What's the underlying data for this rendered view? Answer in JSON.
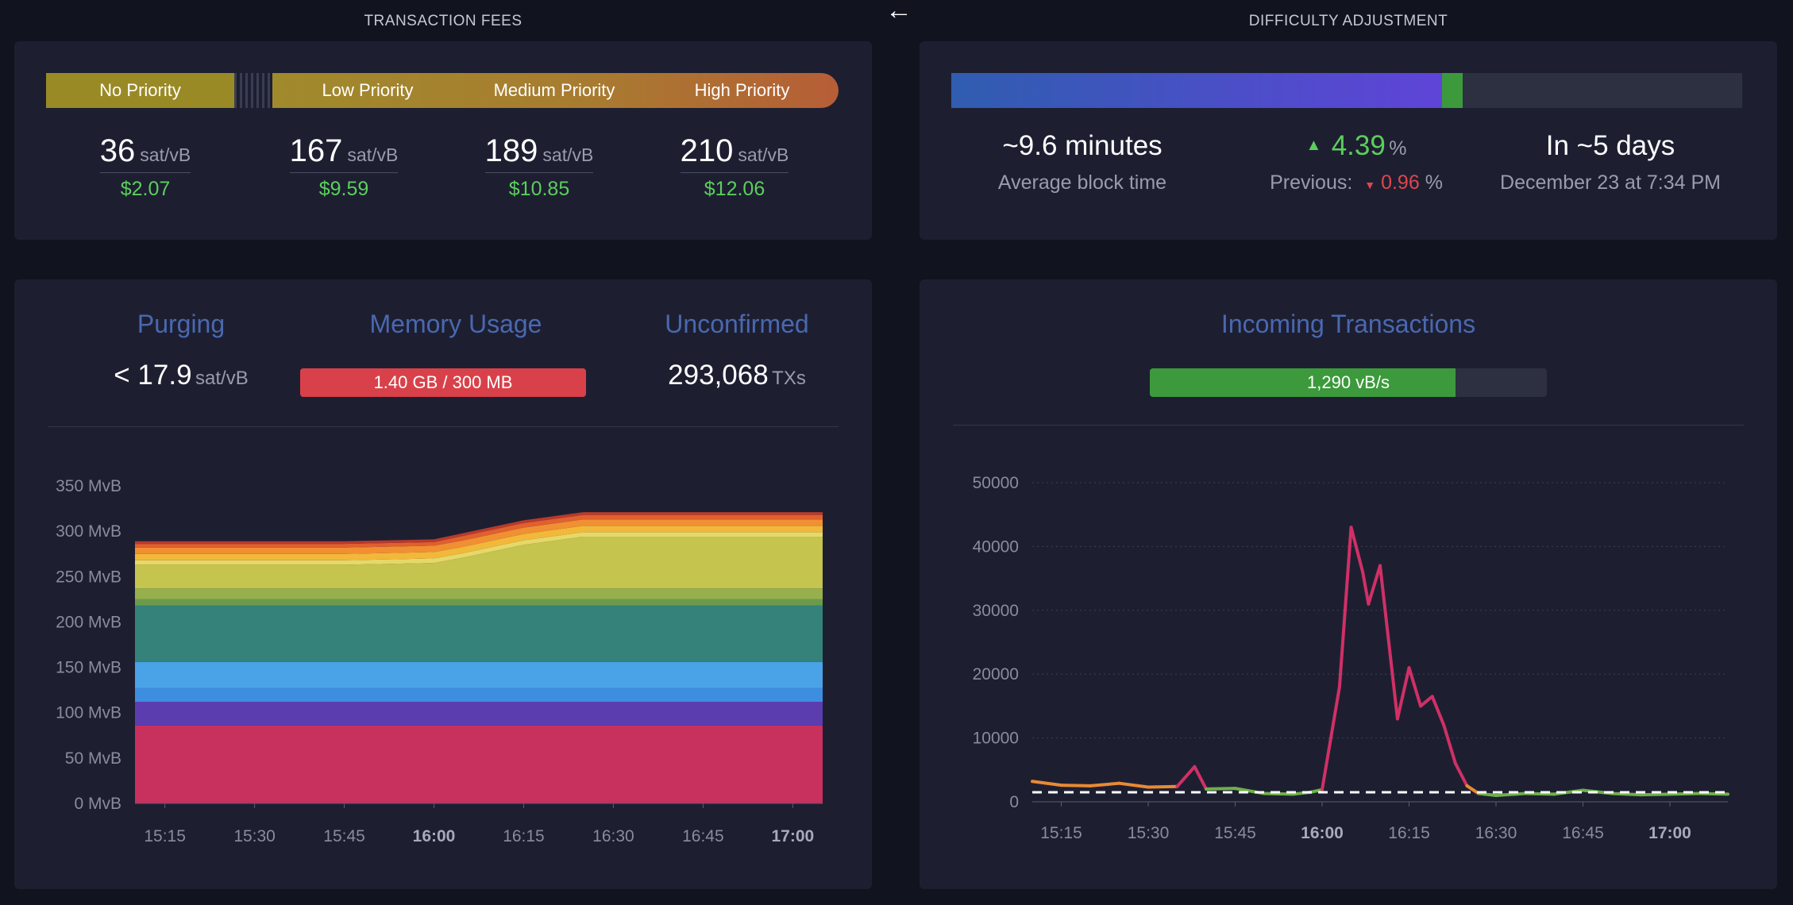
{
  "top_icon": "arrow-left-icon",
  "fees": {
    "title": "TRANSACTION FEES",
    "segments": [
      {
        "label": "No Priority",
        "color": "#9a8a26"
      },
      {
        "label": "Low Priority",
        "color": "#a08a2c"
      },
      {
        "label": "Medium Priority",
        "color": "#a87c30"
      },
      {
        "label": "High Priority",
        "color": "#b65e36"
      }
    ],
    "items": [
      {
        "value": "36",
        "unit": "sat/vB",
        "usd": "$2.07"
      },
      {
        "value": "167",
        "unit": "sat/vB",
        "usd": "$9.59"
      },
      {
        "value": "189",
        "unit": "sat/vB",
        "usd": "$10.85"
      },
      {
        "value": "210",
        "unit": "sat/vB",
        "usd": "$12.06"
      }
    ]
  },
  "difficulty": {
    "title": "DIFFICULTY ADJUSTMENT",
    "progress": 0.62,
    "block_time_value": "~9.6 minutes",
    "block_time_label": "Average block time",
    "change_value": "4.39",
    "change_unit": "%",
    "previous_label": "Previous:",
    "previous_value": "0.96",
    "previous_unit": "%",
    "eta_value": "In ~5 days",
    "eta_date": "December 23 at 7:34 PM",
    "colors": {
      "up": "#5cce5c",
      "down": "#e0454e"
    }
  },
  "mempool": {
    "purging_label": "Purging",
    "purging_value": "< 17.9",
    "purging_unit": "sat/vB",
    "memory_label": "Memory Usage",
    "memory_value": "1.40 GB / 300 MB",
    "unconfirmed_label": "Unconfirmed",
    "unconfirmed_value": "293,068",
    "unconfirmed_unit": "TXs"
  },
  "incoming": {
    "title": "Incoming Transactions",
    "rate": "1,290 vB/s",
    "rate_fraction": 0.77
  },
  "chart_data": [
    {
      "type": "area",
      "title": "",
      "stacked": true,
      "x": [
        "15:10",
        "15:15",
        "15:30",
        "15:45",
        "16:00",
        "16:05",
        "16:15",
        "16:25",
        "16:30",
        "16:45",
        "17:00",
        "17:05"
      ],
      "xticks": [
        "15:15",
        "15:30",
        "15:45",
        "16:00",
        "16:15",
        "16:30",
        "16:45",
        "17:00"
      ],
      "xticks_bold": [
        "16:00",
        "17:00"
      ],
      "ylim": [
        0,
        350
      ],
      "yticks": [
        "0 MvB",
        "50 MvB",
        "100 MvB",
        "150 MvB",
        "200 MvB",
        "250 MvB",
        "300 MvB",
        "350 MvB"
      ],
      "grid": false,
      "series": [
        {
          "color": "#c8305e",
          "values": [
            86,
            86,
            86,
            86,
            86,
            86,
            86,
            86,
            86,
            86,
            86,
            86
          ]
        },
        {
          "color": "#5b3db0",
          "values": [
            26,
            26,
            26,
            26,
            26,
            26,
            26,
            26,
            26,
            26,
            26,
            26
          ]
        },
        {
          "color": "#3d8ee0",
          "values": [
            15,
            15,
            15,
            15,
            15,
            15,
            15,
            15,
            15,
            15,
            15,
            15
          ]
        },
        {
          "color": "#4aa3e6",
          "values": [
            29,
            29,
            29,
            29,
            29,
            29,
            29,
            29,
            29,
            29,
            29,
            29
          ]
        },
        {
          "color": "#35827a",
          "values": [
            62,
            62,
            62,
            62,
            62,
            62,
            62,
            62,
            62,
            62,
            62,
            62
          ]
        },
        {
          "color": "#6b9a4c",
          "values": [
            7,
            7,
            7,
            7,
            7,
            7,
            7,
            7,
            7,
            7,
            7,
            7
          ]
        },
        {
          "color": "#96b04e",
          "values": [
            12,
            12,
            12,
            12,
            12,
            12,
            12,
            12,
            12,
            12,
            12,
            12
          ]
        },
        {
          "color": "#c4c44e",
          "values": [
            26,
            26,
            26,
            26,
            28,
            34,
            48,
            57,
            57,
            57,
            57,
            57
          ]
        },
        {
          "color": "#e6d868",
          "values": [
            5,
            5,
            5,
            5,
            5,
            5,
            5,
            5,
            5,
            5,
            5,
            5
          ]
        },
        {
          "color": "#f2b83a",
          "values": [
            7,
            7,
            7,
            7,
            7,
            7,
            7,
            7,
            7,
            7,
            7,
            7
          ]
        },
        {
          "color": "#f09032",
          "values": [
            7,
            7,
            7,
            7,
            7,
            7,
            7,
            7,
            7,
            7,
            7,
            7
          ]
        },
        {
          "color": "#e0602e",
          "values": [
            4,
            4,
            4,
            4,
            4,
            5,
            5,
            5,
            5,
            5,
            5,
            5
          ]
        },
        {
          "color": "#b83a2c",
          "values": [
            3,
            3,
            3,
            3,
            3,
            3,
            3,
            3,
            3,
            3,
            3,
            3
          ]
        }
      ]
    },
    {
      "type": "line",
      "title": "",
      "x": [
        "15:10",
        "15:15",
        "15:20",
        "15:25",
        "15:30",
        "15:35",
        "15:38",
        "15:40",
        "15:45",
        "15:50",
        "15:55",
        "15:58",
        "16:00",
        "16:03",
        "16:05",
        "16:07",
        "16:08",
        "16:10",
        "16:12",
        "16:13",
        "16:15",
        "16:17",
        "16:19",
        "16:21",
        "16:23",
        "16:25",
        "16:27",
        "16:30",
        "16:35",
        "16:40",
        "16:45",
        "16:50",
        "16:55",
        "17:00",
        "17:05",
        "17:10"
      ],
      "values": [
        3200,
        2600,
        2500,
        2900,
        2300,
        2400,
        5500,
        2000,
        2100,
        1300,
        1200,
        1500,
        1900,
        18000,
        43000,
        36000,
        31000,
        37000,
        21000,
        13000,
        21000,
        15000,
        16500,
        12000,
        6000,
        2500,
        1300,
        1000,
        1300,
        1200,
        1800,
        1300,
        1100,
        1200,
        1300,
        1200
      ],
      "threshold": 1500,
      "xticks": [
        "15:15",
        "15:30",
        "15:45",
        "16:00",
        "16:15",
        "16:30",
        "16:45",
        "17:00"
      ],
      "xticks_bold": [
        "16:00",
        "17:00"
      ],
      "yticks": [
        "0",
        "10000",
        "20000",
        "30000",
        "40000",
        "50000"
      ],
      "ylim": [
        0,
        50000
      ],
      "grid": true
    }
  ]
}
